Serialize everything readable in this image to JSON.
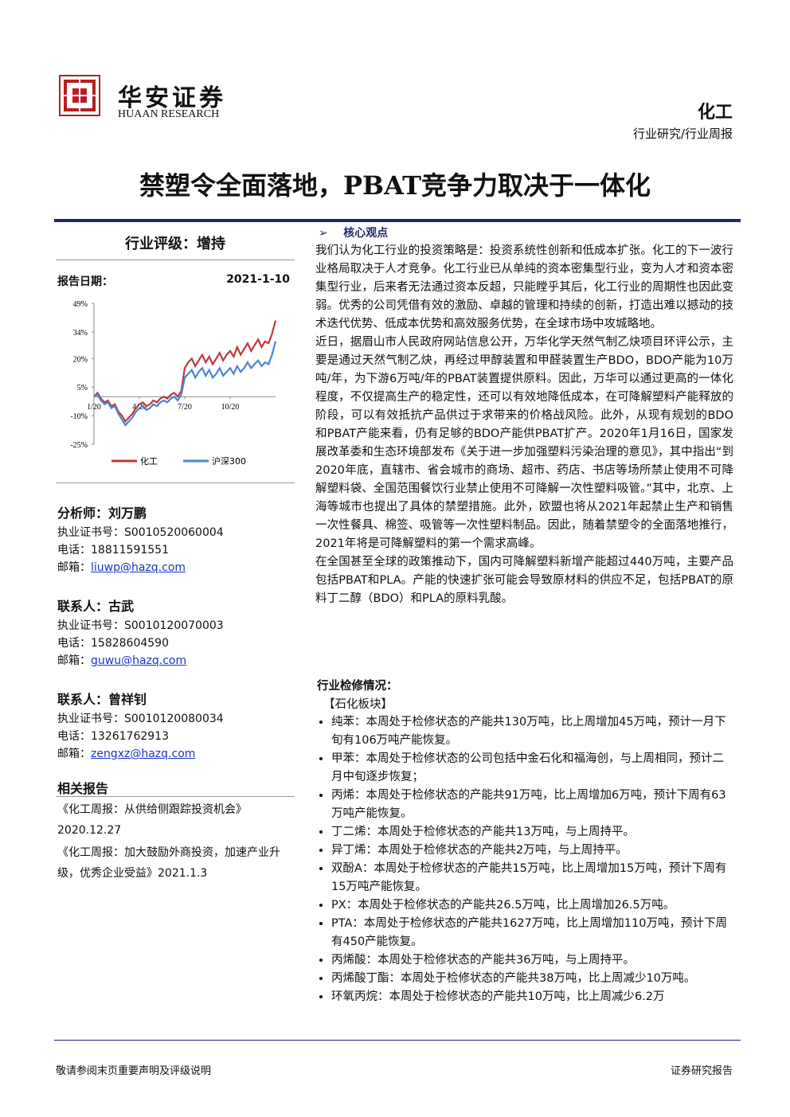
{
  "header": {
    "logo_cn": "华安证券",
    "logo_en": "HUAAN RESEARCH",
    "sector": "化工",
    "report_type": "行业研究/行业周报"
  },
  "title": "禁塑令全面落地，PBAT竞争力取决于一体化",
  "rating": {
    "text": "行业评级：增持",
    "date_label": "报告日期：",
    "date": "2021-1-10"
  },
  "chart": {
    "type": "line",
    "categories": [
      "1/20",
      null,
      null,
      null,
      null,
      null,
      null,
      null,
      null,
      null,
      null,
      null,
      null,
      "4/20",
      null,
      null,
      null,
      null,
      null,
      null,
      null,
      null,
      null,
      null,
      null,
      null,
      "7/20",
      null,
      null,
      null,
      null,
      null,
      null,
      null,
      null,
      null,
      null,
      null,
      null,
      "10/20",
      null,
      null,
      null,
      null,
      null,
      null,
      null,
      null,
      null,
      null,
      null,
      null,
      null
    ],
    "ylim": [
      -25,
      49
    ],
    "yticks": [
      {
        "value": 49,
        "label": "49%"
      },
      {
        "value": 34,
        "label": "34%"
      },
      {
        "value": 20,
        "label": "20%"
      },
      {
        "value": 5,
        "label": "5%"
      },
      {
        "value": -10,
        "label": "-10%"
      },
      {
        "value": -25,
        "label": "-25%"
      }
    ],
    "series": [
      {
        "name": "化工",
        "color": "#c0393b",
        "values": [
          0,
          2,
          -1,
          -3,
          -2,
          -5,
          -4,
          -8,
          -10,
          -13,
          -11,
          -9,
          -6,
          -4,
          -3,
          -5,
          -4,
          -2,
          -3,
          -1,
          0,
          -1,
          1,
          2,
          0,
          3,
          15,
          18,
          20,
          16,
          19,
          22,
          18,
          21,
          17,
          20,
          23,
          19,
          22,
          24,
          21,
          26,
          22,
          25,
          28,
          24,
          27,
          30,
          26,
          29,
          28,
          33,
          40
        ]
      },
      {
        "name": "沪深300",
        "color": "#4a86d0",
        "values": [
          0,
          1,
          -2,
          -4,
          -3,
          -6,
          -5,
          -9,
          -12,
          -15,
          -13,
          -11,
          -8,
          -6,
          -5,
          -7,
          -6,
          -4,
          -5,
          -3,
          -2,
          -3,
          -1,
          0,
          -2,
          1,
          10,
          12,
          14,
          10,
          13,
          15,
          11,
          14,
          10,
          12,
          15,
          11,
          13,
          15,
          12,
          16,
          13,
          15,
          18,
          15,
          17,
          19,
          16,
          18,
          17,
          22,
          29
        ]
      }
    ]
  },
  "contacts": [
    {
      "title": "分析师：刘万鹏",
      "cert": "执业证书号：S0010520060004",
      "phone": "电话：18811591551",
      "email_label": "邮箱：",
      "email": "liuwp@hazq.com"
    },
    {
      "title": "联系人：古武",
      "cert": "执业证书号：S0010120070003",
      "phone": "电话：15828604590",
      "email_label": "邮箱：",
      "email": "guwu@hazq.com"
    },
    {
      "title": "联系人：曾祥钊",
      "cert": "执业证书号：S0010120080034",
      "phone": "电话：13261762913",
      "email_label": "邮箱：",
      "email": "zengxz@hazq.com"
    }
  ],
  "related": {
    "title": "相关报告",
    "items": [
      "《化工周报：从供给侧跟踪投资机会》2020.12.27",
      "《化工周报：加大鼓励外商投资，加速产业升级，优秀企业受益》2021.1.3"
    ]
  },
  "core": {
    "title": "核心观点",
    "paragraphs": [
      "我们认为化工行业的投资策略是：投资系统性创新和低成本扩张。化工的下一波行业格局取决于人才竞争。化工行业已从单纯的资本密集型行业，变为人才和资本密集型行业，后来者无法通过资本反超，只能瞠乎其后，化工行业的周期性也因此变弱。优秀的公司凭借有效的激励、卓越的管理和持续的创新，打造出难以撼动的技术迭代优势、低成本优势和高效服务优势，在全球市场中攻城略地。",
      "近日，据眉山市人民政府网站信息公开，万华化学天然气制乙炔项目环评公示，主要是通过天然气制乙炔，再经过甲醇装置和甲醛装置生产BDO，BDO产能为10万吨/年，为下游6万吨/年的PBAT装置提供原料。因此，万华可以通过更高的一体化程度，不仅提高生产的稳定性，还可以有效地降低成本，在可降解塑料产能释放的阶段，可以有效抵抗产品供过于求带来的价格战风险。此外，从现有规划的BDO和PBAT产能来看，仍有足够的BDO产能供PBAT扩产。2020年1月16日，国家发展改革委和生态环境部发布《关于进一步加强塑料污染治理的意见》，其中指出“到2020年底，直辖市、省会城市的商场、超市、药店、书店等场所禁止使用不可降解塑料袋、全国范围餐饮行业禁止使用不可降解一次性塑料吸管。”其中，北京、上海等城市也提出了具体的禁塑措施。此外，欧盟也将从2021年起禁止生产和销售一次性餐具、棉签、吸管等一次性塑料制品。因此，随着禁塑令的全面落地推行，2021年将是可降解塑料的第一个需求高峰。",
      "在全国甚至全球的政策推动下，国内可降解塑料新增产能超过440万吨，主要产品包括PBAT和PLA。产能的快速扩张可能会导致原材料的供应不足，包括PBAT的原料丁二醇（BDO）和PLA的原料乳酸。"
    ]
  },
  "maintenance": {
    "title": "行业检修情况：",
    "section": "【石化板块】",
    "items": [
      "纯苯：本周处于检修状态的产能共130万吨，比上周增加45万吨，预计一月下旬有106万吨产能恢复。",
      "甲苯：本周处于检修状态的公司包括中金石化和福海创，与上周相同，预计二月中旬逐步恢复；",
      "丙烯：本周处于检修状态的产能共91万吨，比上周增加6万吨，预计下周有63万吨产能恢复。",
      "丁二烯：本周处于检修状态的产能共13万吨，与上周持平。",
      "异丁烯：本周处于检修状态的产能共2万吨，与上周持平。",
      "双酚A：本周处于检修状态的产能共15万吨，比上周增加15万吨，预计下周有15万吨产能恢复。",
      "PX：本周处于检修状态的产能共26.5万吨，比上周增加26.5万吨。",
      "PTA：本周处于检修状态的产能共1627万吨，比上周增加110万吨，预计下周有450产能恢复。",
      "丙烯酸：本周处于检修状态的产能共36万吨，与上周持平。",
      "丙烯酸丁酯：本周处于检修状态的产能共38万吨，比上周减少10万吨。",
      "环氧丙烷：本周处于检修状态的产能共10万吨，比上周减少6.2万"
    ]
  },
  "footer": {
    "left": "敬请参阅末页重要声明及评级说明",
    "right": "证券研究报告"
  }
}
